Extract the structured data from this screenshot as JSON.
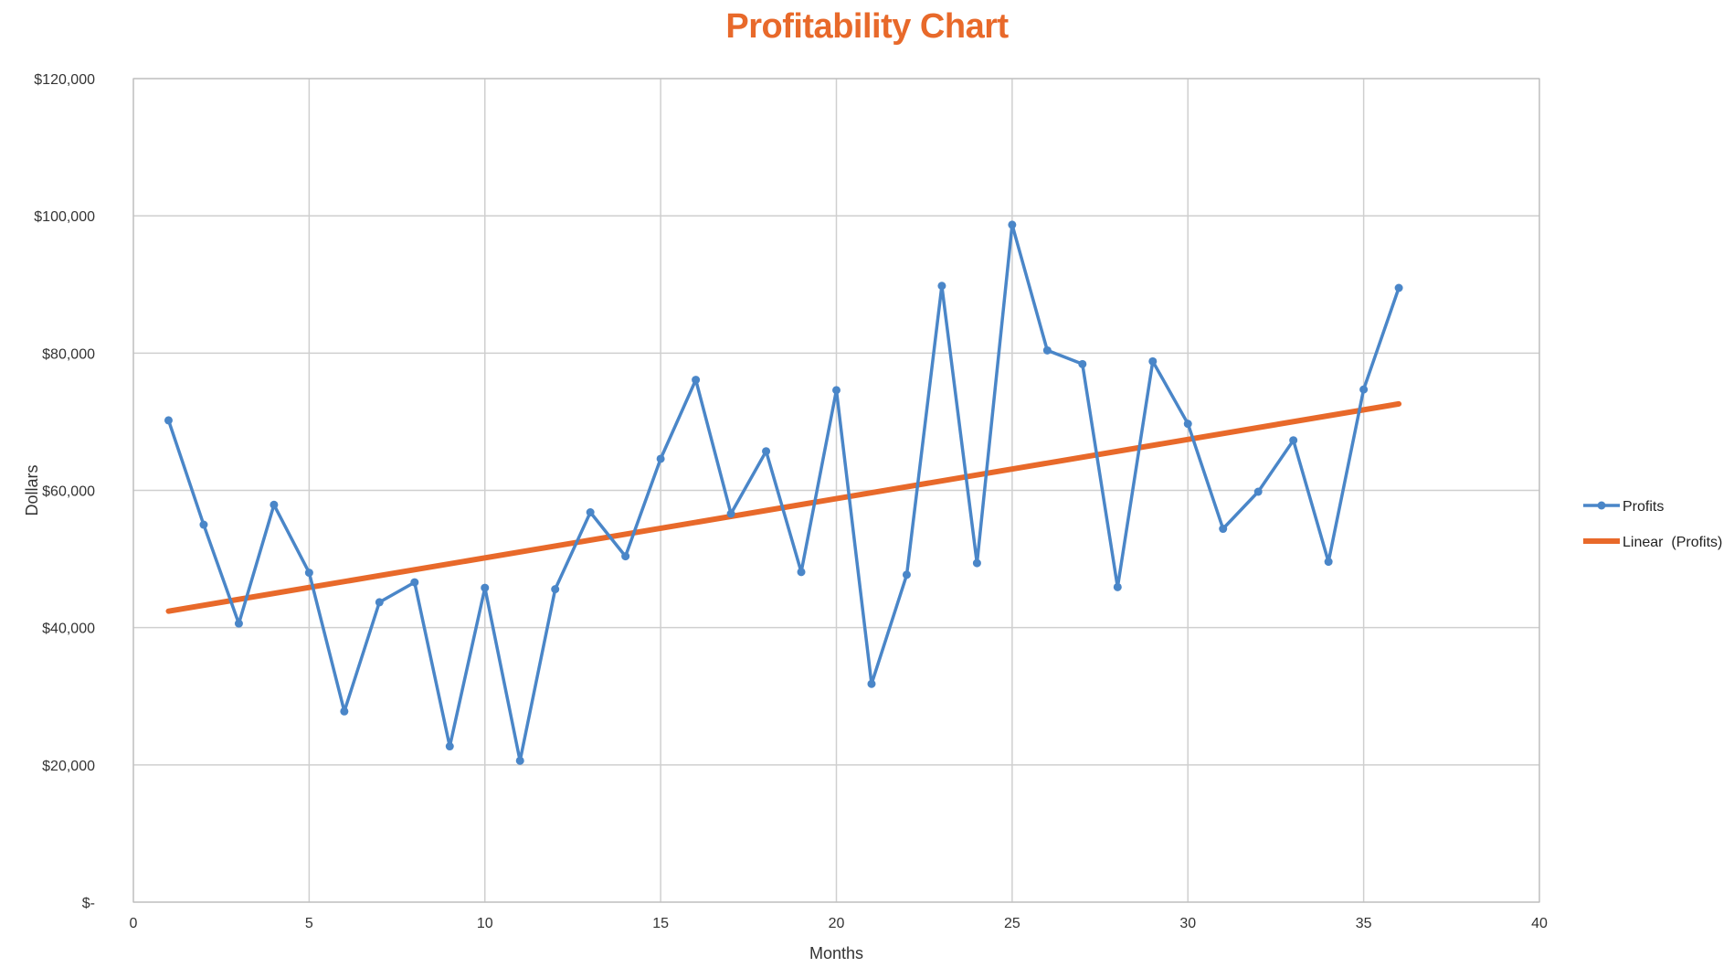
{
  "chart_data": {
    "type": "line",
    "title": "Profitability Chart",
    "xlabel": "Months",
    "ylabel": "Dollars",
    "xlim": [
      0,
      40
    ],
    "ylim": [
      0,
      120000
    ],
    "x_ticks": [
      0,
      5,
      10,
      15,
      20,
      25,
      30,
      35,
      40
    ],
    "x_tick_labels": [
      "0",
      "5",
      "10",
      "15",
      "20",
      "25",
      "30",
      "35",
      "40"
    ],
    "y_ticks": [
      0,
      20000,
      40000,
      60000,
      80000,
      100000,
      120000
    ],
    "y_tick_labels": [
      "$-",
      "$20,000",
      "$40,000",
      "$60,000",
      "$80,000",
      "$100,000",
      "$120,000"
    ],
    "grid": true,
    "legend_position": "right",
    "colors": {
      "profits": "#4A86C8",
      "linear": "#E8692A",
      "title": "#E8692A",
      "grid": "#CFCFCF"
    },
    "series": [
      {
        "name": "Profits",
        "x": [
          1,
          2,
          3,
          4,
          5,
          6,
          7,
          8,
          9,
          10,
          11,
          12,
          13,
          14,
          15,
          16,
          17,
          18,
          19,
          20,
          21,
          22,
          23,
          24,
          25,
          26,
          27,
          28,
          29,
          30,
          31,
          32,
          33,
          34,
          35,
          36
        ],
        "values": [
          70200,
          55000,
          40600,
          57900,
          48000,
          27800,
          43700,
          46600,
          22700,
          45800,
          20600,
          45600,
          56800,
          50400,
          64600,
          76100,
          56600,
          65700,
          48100,
          74600,
          31800,
          47700,
          89800,
          49400,
          98700,
          80400,
          78400,
          45900,
          78800,
          69700,
          54400,
          59800,
          67300,
          49600,
          74700,
          89500
        ],
        "marker": true
      },
      {
        "name": "Linear  (Profits)",
        "x": [
          1,
          36
        ],
        "values": [
          42400,
          72600
        ],
        "marker": false
      }
    ]
  }
}
